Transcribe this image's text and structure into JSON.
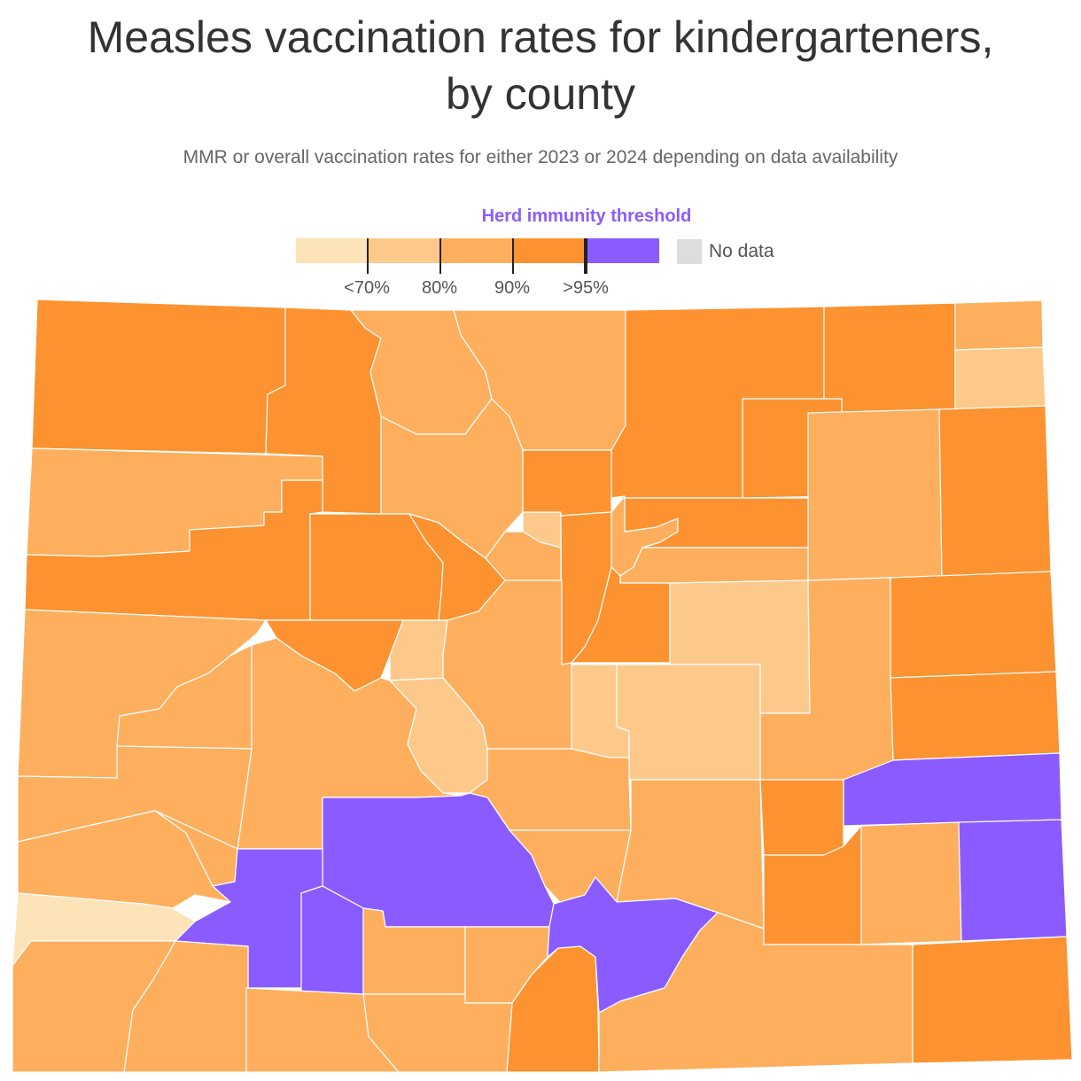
{
  "title_line1": "Measles vaccination rates for kindergarteners,",
  "title_line2": "by county",
  "subtitle": "MMR or overall vaccination rates for either 2023 or 2024 depending on data availability",
  "legend": {
    "threshold_label": "Herd immunity threshold",
    "bins": [
      {
        "range": "lowest",
        "color": "#fde3b8"
      },
      {
        "range": "70-80%",
        "color": "#fdc98a"
      },
      {
        "range": "80-90%",
        "color": "#fdaf5e"
      },
      {
        "range": "90-95%",
        "color": "#fc9230"
      },
      {
        "range": "95%+",
        "color": "#8a5cff"
      }
    ],
    "ticks": [
      "<70%",
      "80%",
      "90%",
      ">95%"
    ],
    "no_data_label": "No data",
    "no_data_color": "#dddddd"
  },
  "map_colors": {
    "c1": "#fde3b8",
    "c2": "#fdc98a",
    "c3": "#fdaf5e",
    "c4": "#fc9230",
    "c5": "#8a5cff"
  }
}
